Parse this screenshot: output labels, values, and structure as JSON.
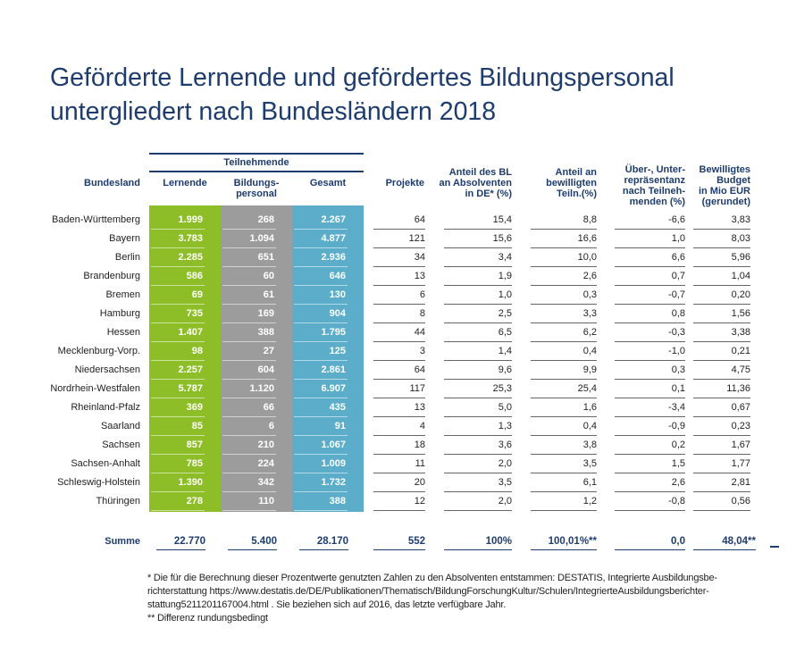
{
  "title": [
    "Geförderte Lernende und gefördertes Bildungspersonal",
    "untergliedert nach Bundesländern 2018"
  ],
  "headers": {
    "group": "Teilnehmende",
    "bundesland": "Bundesland",
    "lernende": "Lernende",
    "bildungspersonal": [
      "Bildungs-",
      "personal"
    ],
    "gesamt": "Gesamt",
    "projekte": "Projekte",
    "anteil_bl": [
      "Anteil des BL",
      "an Absolventen",
      "in DE* (%)"
    ],
    "anteil_teiln": [
      "Anteil an",
      "bewilligten",
      "Teiln.(%)"
    ],
    "ueber_unter": [
      "Über-, Unter-",
      "repräsentanz",
      "nach Teilneh-",
      "menden (%)"
    ],
    "budget": [
      "Bewilligtes",
      "Budget",
      "in Mio EUR",
      "(gerundet)"
    ]
  },
  "colors": {
    "lernende": "#8dbd27",
    "bildungspersonal": "#9c9c9c",
    "gesamt": "#5badc9",
    "accent": "#1e3c6e"
  },
  "rows": [
    [
      "Baden-Württemberg",
      "1.999",
      "268",
      "2.267",
      "64",
      "15,4",
      "8,8",
      "-6,6",
      "3,83"
    ],
    [
      "Bayern",
      "3.783",
      "1.094",
      "4.877",
      "121",
      "15,6",
      "16,6",
      "1,0",
      "8,03"
    ],
    [
      "Berlin",
      "2.285",
      "651",
      "2.936",
      "34",
      "3,4",
      "10,0",
      "6,6",
      "5,96"
    ],
    [
      "Brandenburg",
      "586",
      "60",
      "646",
      "13",
      "1,9",
      "2,6",
      "0,7",
      "1,04"
    ],
    [
      "Bremen",
      "69",
      "61",
      "130",
      "6",
      "1,0",
      "0,3",
      "-0,7",
      "0,20"
    ],
    [
      "Hamburg",
      "735",
      "169",
      "904",
      "8",
      "2,5",
      "3,3",
      "0,8",
      "1,56"
    ],
    [
      "Hessen",
      "1.407",
      "388",
      "1.795",
      "44",
      "6,5",
      "6,2",
      "-0,3",
      "3,38"
    ],
    [
      "Mecklenburg-Vorp.",
      "98",
      "27",
      "125",
      "3",
      "1,4",
      "0,4",
      "-1,0",
      "0,21"
    ],
    [
      "Niedersachsen",
      "2.257",
      "604",
      "2.861",
      "64",
      "9,6",
      "9,9",
      "0,3",
      "4,75"
    ],
    [
      "Nordrhein-Westfalen",
      "5.787",
      "1.120",
      "6.907",
      "117",
      "25,3",
      "25,4",
      "0,1",
      "11,36"
    ],
    [
      "Rheinland-Pfalz",
      "369",
      "66",
      "435",
      "13",
      "5,0",
      "1,6",
      "-3,4",
      "0,67"
    ],
    [
      "Saarland",
      "85",
      "6",
      "91",
      "4",
      "1,3",
      "0,4",
      "-0,9",
      "0,23"
    ],
    [
      "Sachsen",
      "857",
      "210",
      "1.067",
      "18",
      "3,6",
      "3,8",
      "0,2",
      "1,67"
    ],
    [
      "Sachsen-Anhalt",
      "785",
      "224",
      "1.009",
      "11",
      "2,0",
      "3,5",
      "1,5",
      "1,77"
    ],
    [
      "Schleswig-Holstein",
      "1.390",
      "342",
      "1.732",
      "20",
      "3,5",
      "6,1",
      "2,6",
      "2,81"
    ],
    [
      "Thüringen",
      "278",
      "110",
      "388",
      "12",
      "2,0",
      "1,2",
      "-0,8",
      "0,56"
    ]
  ],
  "summe": [
    "Summe",
    "22.770",
    "5.400",
    "28.170",
    "552",
    "100%",
    "100,01%**",
    "0,0",
    "48,04**"
  ],
  "footnotes": [
    "* Die für die Berechnung dieser Prozentwerte genutzten Zahlen zu den Absolventen entstammen: DESTATIS, Integrierte Ausbildungsbe-richterstattung https://www.destatis.de/DE/Publikationen/Thematisch/BildungForschungKultur/Schulen/IntegrierteAusbildungsberichter-stattung5211201167004.html . Sie beziehen sich auf 2016, das letzte verfügbare Jahr.",
    "** Differenz rundungsbedingt"
  ]
}
